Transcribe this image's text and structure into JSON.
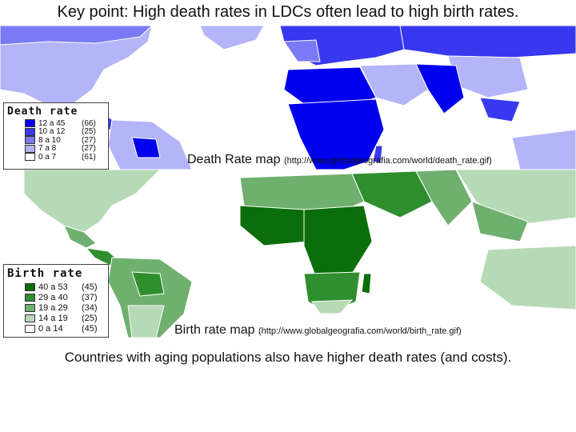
{
  "title": "Key point: High death rates in LDCs often lead to high birth rates.",
  "death_map": {
    "caption": "Death Rate map",
    "url": "(http://www.globalgeografia.com/world/death_rate.gif)",
    "legend": {
      "title": "Death rate",
      "items": [
        {
          "range": "12 a 45",
          "count": "(66)",
          "color": "#0000ee"
        },
        {
          "range": "10 a 12",
          "count": "(25)",
          "color": "#3838f0"
        },
        {
          "range": "8 a 10",
          "count": "(27)",
          "color": "#7a7af4"
        },
        {
          "range": "7 a 8",
          "count": "(27)",
          "color": "#b4b4f8"
        },
        {
          "range": "0 a 7",
          "count": "(61)",
          "color": "#ffffff"
        }
      ]
    }
  },
  "birth_map": {
    "caption": "Birth rate map",
    "url": "(http://www.globalgeografia.com/world/birth_rate.gif)",
    "legend": {
      "title": "Birth rate",
      "items": [
        {
          "range": "40 a 53",
          "count": "(45)",
          "color": "#0a6e0a"
        },
        {
          "range": "29 a 40",
          "count": "(37)",
          "color": "#2f8f2f"
        },
        {
          "range": "19 a 29",
          "count": "(34)",
          "color": "#6fb06f"
        },
        {
          "range": "14 a 19",
          "count": "(25)",
          "color": "#b6d9b6"
        },
        {
          "range": "0 a 14",
          "count": "(45)",
          "color": "#ffffff"
        }
      ]
    }
  },
  "footer": "Countries with aging populations also have higher death rates (and costs)."
}
